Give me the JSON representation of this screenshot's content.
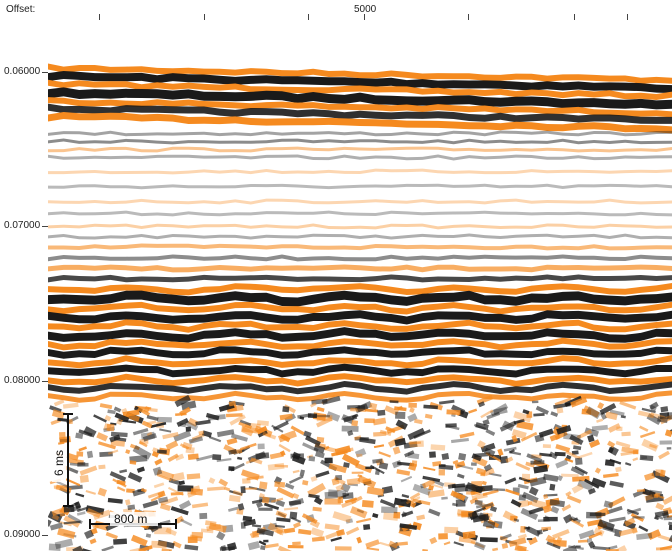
{
  "axis": {
    "offset_label": "Offset:",
    "offset_tick": "5000",
    "time_ticks": [
      "0.06000",
      "0.07000",
      "0.08000",
      "0.09000"
    ]
  },
  "scalebar": {
    "vertical_label": "6 ms",
    "horizontal_label": "800 m"
  },
  "colors": {
    "positive": "#f58a1f",
    "negative": "#1a1a1a",
    "background": "#ffffff"
  }
}
